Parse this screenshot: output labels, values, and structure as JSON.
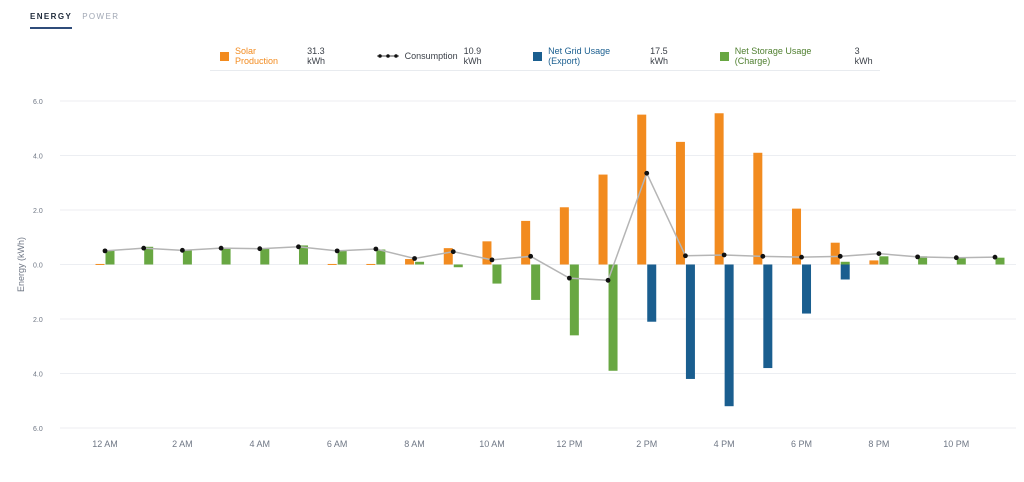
{
  "tabs": [
    {
      "label": "ENERGY",
      "active": true
    },
    {
      "label": "POWER",
      "active": false
    }
  ],
  "legend": [
    {
      "name": "Solar Production",
      "value": "31.3 kWh",
      "color": "#f28b1f",
      "name_color": "#f28b1f",
      "marker": "square"
    },
    {
      "name": "Consumption",
      "value": "10.9 kWh",
      "color": "#222222",
      "name_color": "#3a3f47",
      "marker": "line-dot"
    },
    {
      "name": "Net Grid Usage (Export)",
      "value": "17.5 kWh",
      "color": "#1a5e8f",
      "name_color": "#1a5e8f",
      "marker": "square"
    },
    {
      "name": "Net Storage Usage (Charge)",
      "value": "3 kWh",
      "color": "#68a742",
      "name_color": "#4f7f2f",
      "marker": "square"
    }
  ],
  "chart_data": {
    "type": "bar",
    "ylabel": "Energy (kWh)",
    "ylim": [
      -6,
      6
    ],
    "y_ticks": [
      "6.0",
      "4.0",
      "2.0",
      "0.0",
      "2.0",
      "4.0",
      "6.0"
    ],
    "x_tick_labels": [
      "12 AM",
      "2 AM",
      "4 AM",
      "6 AM",
      "8 AM",
      "10 AM",
      "12 PM",
      "2 PM",
      "4 PM",
      "6 PM",
      "8 PM",
      "10 PM"
    ],
    "hours": [
      0,
      1,
      2,
      3,
      4,
      5,
      6,
      7,
      8,
      9,
      10,
      11,
      12,
      13,
      14,
      15,
      16,
      17,
      18,
      19,
      20,
      21,
      22,
      23
    ],
    "grid": true,
    "series": [
      {
        "name": "Solar Production",
        "color": "#f28b1f",
        "values": [
          0.02,
          0,
          0,
          0,
          0,
          0,
          0.02,
          0.02,
          0.2,
          0.6,
          0.85,
          1.6,
          2.1,
          3.3,
          5.5,
          4.5,
          5.55,
          4.1,
          2.05,
          0.8,
          0.15,
          0,
          0,
          0
        ]
      },
      {
        "name": "Net Grid Usage (Export)",
        "color": "#1a5e8f",
        "values": [
          0,
          0,
          0,
          0,
          0,
          0,
          0,
          0,
          0,
          0,
          0,
          0,
          0,
          0,
          -2.1,
          -4.2,
          -5.2,
          -3.8,
          -1.8,
          -0.55,
          0,
          0,
          0,
          0
        ]
      },
      {
        "name": "Net Storage Usage (Charge)",
        "color": "#68a742",
        "values": [
          0.5,
          0.65,
          0.55,
          0.6,
          0.6,
          0.7,
          0.5,
          0.55,
          0.1,
          -0.1,
          -0.7,
          -1.3,
          -2.6,
          -3.9,
          0,
          0,
          0,
          0,
          0,
          0.1,
          0.3,
          0.3,
          0.25,
          0.25
        ]
      },
      {
        "name": "Consumption",
        "color": "#b0b0b0",
        "values": [
          0.5,
          0.6,
          0.52,
          0.6,
          0.58,
          0.65,
          0.5,
          0.57,
          0.22,
          0.47,
          0.17,
          0.3,
          -0.5,
          -0.58,
          3.35,
          0.32,
          0.35,
          0.3,
          0.27,
          0.3,
          0.4,
          0.28,
          0.25,
          0.27
        ]
      }
    ]
  }
}
